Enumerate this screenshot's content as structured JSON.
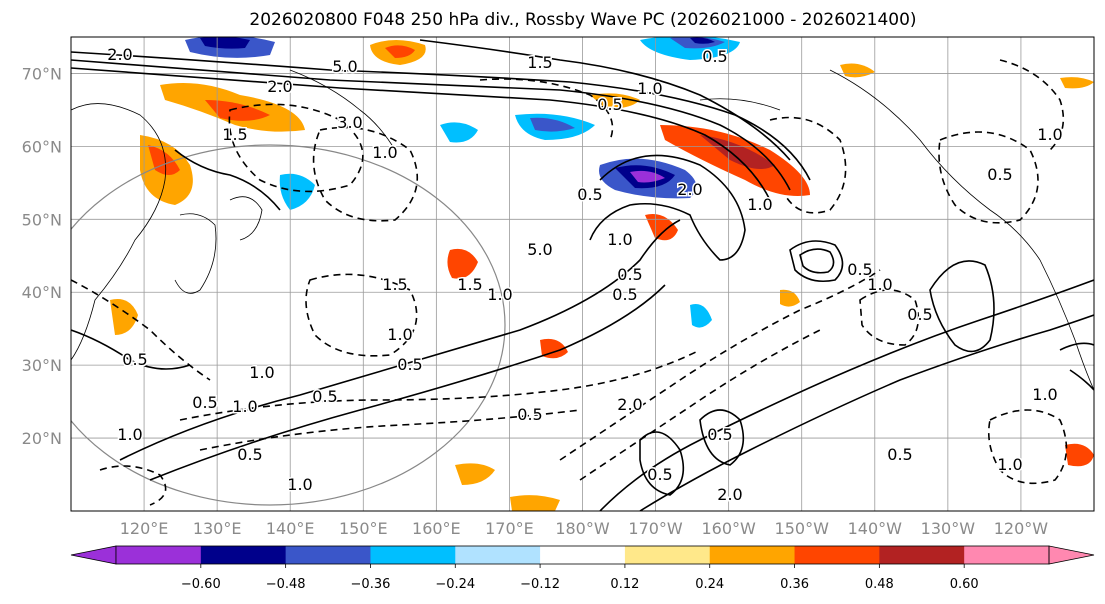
{
  "title": "2026020800 F048 250 hPa div., Rossby Wave PC (2026021000 - 2026021400)",
  "map": {
    "lat_labels": [
      "70°N",
      "60°N",
      "50°N",
      "40°N",
      "30°N",
      "20°N"
    ],
    "lat_values": [
      70,
      60,
      50,
      40,
      30,
      20
    ],
    "lat_range": [
      10,
      75
    ],
    "lon_labels": [
      "120°E",
      "130°E",
      "140°E",
      "150°E",
      "160°E",
      "170°E",
      "180°W",
      "170°W",
      "160°W",
      "150°W",
      "140°W",
      "130°W",
      "120°W"
    ],
    "lon_values": [
      120,
      130,
      140,
      150,
      160,
      170,
      180,
      190,
      200,
      210,
      220,
      230,
      240
    ],
    "lon_range": [
      110,
      250
    ],
    "gridlines": true,
    "contour_labels": [
      "2.0",
      "5.0",
      "0.5",
      "2.0",
      "1.0",
      "1.5",
      "3.0",
      "1.0",
      "1.5",
      "0.5",
      "1.0",
      "0.5",
      "1.5",
      "1.0",
      "0.5",
      "5.0",
      "1.0",
      "0.5",
      "1.0",
      "0.5",
      "0.5",
      "1.0",
      "1.5",
      "2.0",
      "0.5",
      "0.5",
      "1.0",
      "0.5",
      "0.5",
      "0.5",
      "1.0",
      "1.0",
      "0.5",
      "1.0",
      "0.5",
      "2.0",
      "0.5",
      "1.0",
      "0.5",
      "1.0",
      "2.0",
      "0.5",
      "1.0"
    ]
  },
  "colorbar": {
    "tick_labels": [
      "−0.60",
      "−0.48",
      "−0.36",
      "−0.24",
      "−0.12",
      "0.12",
      "0.24",
      "0.36",
      "0.48",
      "0.60"
    ],
    "levels": [
      -0.6,
      -0.48,
      -0.36,
      -0.24,
      -0.12,
      0.12,
      0.24,
      0.36,
      0.48,
      0.6
    ],
    "colors": [
      "#9b30d9",
      "#00008b",
      "#3a56c9",
      "#00bfff",
      "#b0e2ff",
      "#ffffff",
      "#ffe88a",
      "#ffa500",
      "#ff4500",
      "#b22222",
      "#ff88b0",
      "#ff88b0"
    ],
    "extend": "both"
  },
  "colors": {
    "purple": "#9b30d9",
    "navy": "#00008b",
    "royal": "#3a56c9",
    "sky": "#00bfff",
    "light_sky": "#b0e2ff",
    "yellow": "#ffe88a",
    "orange": "#ffa500",
    "red_orange": "#ff4500",
    "firebrick": "#b22222",
    "pink": "#ff88b0",
    "grid": "#9a9a9a",
    "contour": "#000000",
    "coast": "#000000"
  }
}
